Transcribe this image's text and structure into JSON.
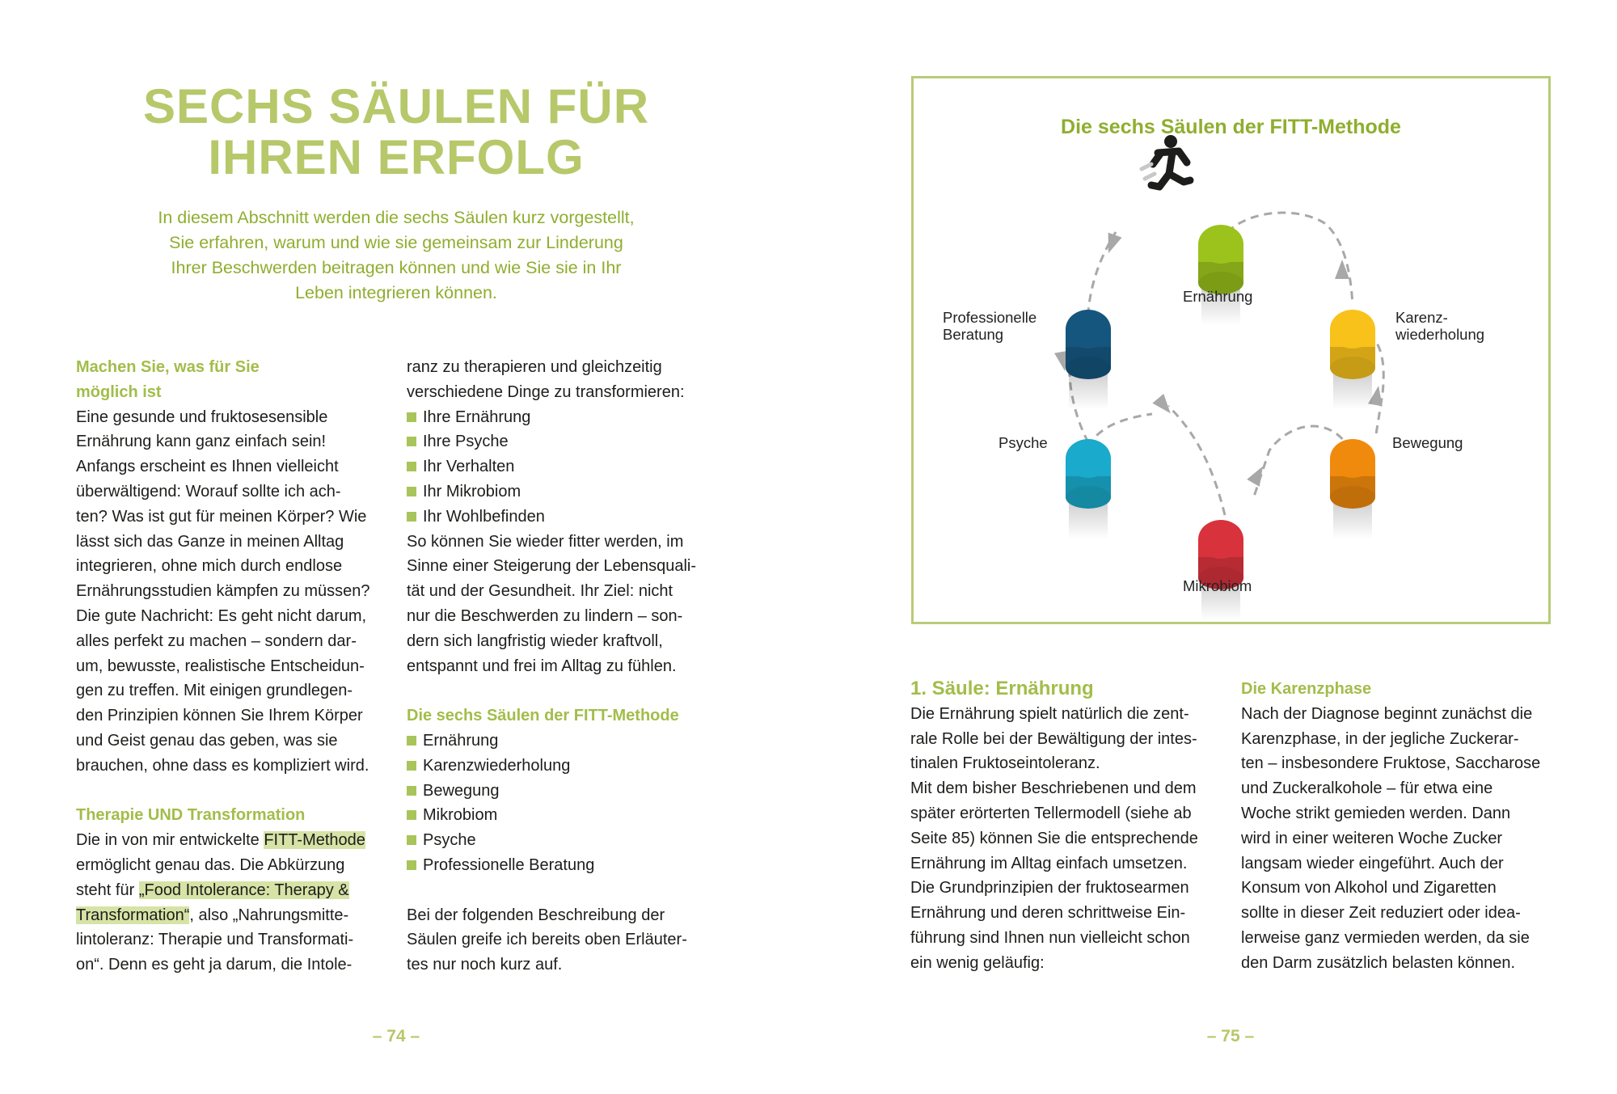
{
  "left_page": {
    "title": [
      "SECHS SÄULEN FÜR",
      "IHREN ERFOLG"
    ],
    "intro": [
      "In diesem Abschnitt werden die sechs Säulen kurz vorgestellt,",
      "Sie erfahren, warum und wie sie gemeinsam zur Linderung",
      "Ihrer Beschwerden beitragen können und wie Sie sie in Ihr",
      "Leben integrieren können."
    ],
    "col1": [
      {
        "t": "Machen Sie, was für Sie",
        "k": "h"
      },
      {
        "t": "möglich ist",
        "k": "h"
      },
      "Eine gesunde und fruktosesensible",
      "Ernährung kann ganz einfach sein!",
      "Anfangs erscheint es Ihnen vielleicht",
      "überwältigend: Worauf sollte ich ach-",
      "ten? Was ist gut für meinen Körper? Wie",
      "lässt sich das Ganze in meinen Alltag",
      "integrieren, ohne mich durch endlose",
      "Ernährungsstudien kämpfen zu müssen?",
      "Die gute Nachricht: Es geht nicht darum,",
      "alles perfekt zu machen – sondern dar-",
      "um, bewusste, realistische Entscheidun-",
      "gen zu treffen. Mit einigen grundlegen-",
      "den Prinzipien können Sie Ihrem Körper",
      "und Geist genau das geben, was sie",
      "brauchen, ohne dass es kompliziert wird.",
      "",
      {
        "t": "Therapie UND Transformation",
        "k": "h"
      },
      [
        {
          "t": "Die in von mir entwickelte "
        },
        {
          "t": "FITT-Methode",
          "hl": true
        }
      ],
      "ermöglicht genau das. Die Abkürzung",
      [
        {
          "t": "steht für "
        },
        {
          "t": "„Food Intolerance: Therapy &",
          "hl": true
        }
      ],
      [
        {
          "t": "Transformation“",
          "hl": true
        },
        {
          "t": ", also „Nahrungsmitte-"
        }
      ],
      "lintoleranz: Therapie und Transformati-",
      "on“. Denn es geht ja darum, die Intole-"
    ],
    "col2": [
      "ranz zu therapieren und gleichzeitig",
      "verschiedene Dinge zu transformieren:",
      {
        "t": "Ihre Ernährung",
        "k": "b"
      },
      {
        "t": "Ihre Psyche",
        "k": "b"
      },
      {
        "t": "Ihr Verhalten",
        "k": "b"
      },
      {
        "t": "Ihr Mikrobiom",
        "k": "b"
      },
      {
        "t": "Ihr Wohlbefinden",
        "k": "b"
      },
      "So können Sie wieder fitter werden, im",
      "Sinne einer Steigerung der Lebensquali-",
      "tät und der Gesundheit. Ihr Ziel: nicht",
      "nur die Beschwerden zu lindern – son-",
      "dern sich langfristig wieder kraftvoll,",
      "entspannt und frei im Alltag zu fühlen.",
      "",
      {
        "t": "Die sechs Säulen der FITT-Methode",
        "k": "h"
      },
      {
        "t": "Ernährung",
        "k": "b"
      },
      {
        "t": "Karenzwiederholung",
        "k": "b"
      },
      {
        "t": "Bewegung",
        "k": "b"
      },
      {
        "t": "Mikrobiom",
        "k": "b"
      },
      {
        "t": "Psyche",
        "k": "b"
      },
      {
        "t": "Professionelle Beratung",
        "k": "b"
      },
      "",
      "Bei der folgenden Beschreibung der",
      "Säulen greife ich bereits oben Erläuter-",
      "tes nur noch kurz auf."
    ],
    "page_number": "– 74 –"
  },
  "right_page": {
    "diagram": {
      "title": "Die sechs Säulen der FITT-Methode",
      "pillars": [
        {
          "label": "Ernährung",
          "color": "#9bc31c"
        },
        {
          "label": "Karenz-\nwiederholung",
          "color": "#f8c21a"
        },
        {
          "label": "Bewegung",
          "color": "#f08a0c"
        },
        {
          "label": "Mikrobiom",
          "color": "#d8323c"
        },
        {
          "label": "Psyche",
          "color": "#1aaacb"
        },
        {
          "label": "Professionelle\nBeratung",
          "color": "#15567f"
        }
      ],
      "labels": {
        "ernaehrung": "Ernährung",
        "karenz": [
          "Karenz-",
          "wiederholung"
        ],
        "bewegung": "Bewegung",
        "mikrobiom": "Mikrobiom",
        "psyche": "Psyche",
        "beratung": [
          "Professionelle",
          "Beratung"
        ]
      },
      "icon": "running-person-icon"
    },
    "col3": [
      {
        "t": "1. Säule: Ernährung",
        "k": "h3"
      },
      "Die Ernährung spielt natürlich die zent-",
      "rale Rolle bei der Bewältigung der intes-",
      "tinalen Fruktoseintoleranz.",
      "Mit dem bisher Beschriebenen und dem",
      "später erörterten Tellermodell (siehe ab",
      "Seite 85) können Sie die entsprechende",
      "Ernährung im Alltag einfach umsetzen.",
      "Die Grundprinzipien der fruktosearmen",
      "Ernährung und deren schrittweise Ein-",
      "führung sind Ihnen nun vielleicht schon",
      "ein wenig geläufig:"
    ],
    "col4": [
      {
        "t": "Die Karenzphase",
        "k": "h"
      },
      "Nach der Diagnose beginnt zunächst die",
      "Karenzphase, in der jegliche Zuckerar-",
      "ten – insbesondere Fruktose, Saccharose",
      "und Zuckeralkohole – für etwa eine",
      "Woche strikt gemieden werden. Dann",
      "wird in einer weiteren Woche Zucker",
      "langsam wieder eingeführt. Auch der",
      "Konsum von Alkohol und Zigaretten",
      "sollte in dieser Zeit reduziert oder idea-",
      "lerweise ganz vermieden werden, da sie",
      "den Darm zusätzlich belasten können."
    ],
    "page_number": "– 75 –"
  },
  "colors": {
    "accent": "#a2bd4a",
    "title": "#b6c86a",
    "intro": "#8fae2f",
    "highlight": "#d6e3a6",
    "frame": "#b9cb78"
  }
}
